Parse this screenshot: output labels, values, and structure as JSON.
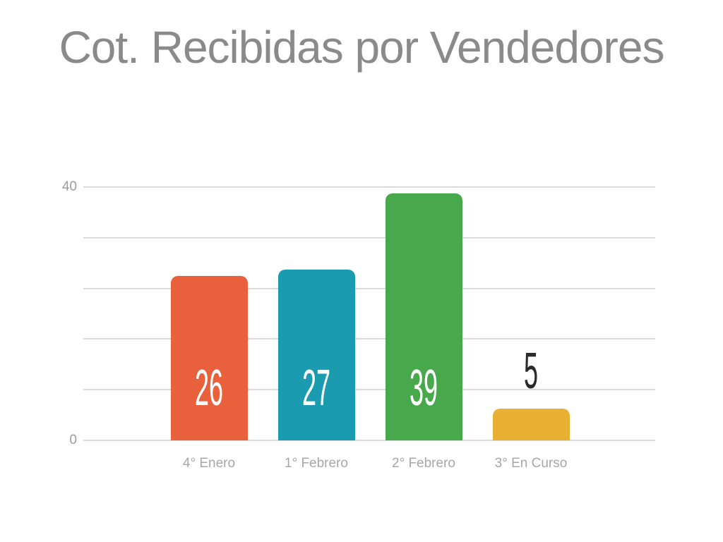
{
  "chart_data": {
    "type": "bar",
    "title": "Cot. Recibidas por Vendedores",
    "categories": [
      "4° Enero",
      "1° Febrero",
      "2° Febrero",
      "3° En Curso"
    ],
    "values": [
      26,
      27,
      39,
      5
    ],
    "value_labels": [
      "26",
      "27",
      "39",
      "5"
    ],
    "value_label_placement": [
      "inside",
      "inside",
      "inside",
      "outside"
    ],
    "value_label_colors": [
      "#FFFFFF",
      "#FFFFFF",
      "#FFFFFF",
      "#2A2A2A"
    ],
    "bar_colors": [
      "#E8613C",
      "#1A9BAF",
      "#47A84C",
      "#E9B133"
    ],
    "xlabel": "",
    "ylabel": "",
    "ylim": [
      0,
      40
    ],
    "yticks": [
      {
        "value": 40,
        "label": "40"
      },
      {
        "value": 0,
        "label": "0"
      }
    ],
    "gridlines": {
      "horizontal_count": 6,
      "visible": true
    },
    "legend": {
      "visible": false
    }
  },
  "colors": {
    "background": "#FFFFFF",
    "title_text": "#8A8A8A",
    "tick_text": "#9C9C9C",
    "category_text": "#A7A7A7",
    "gridline": "#DBDBDB"
  }
}
